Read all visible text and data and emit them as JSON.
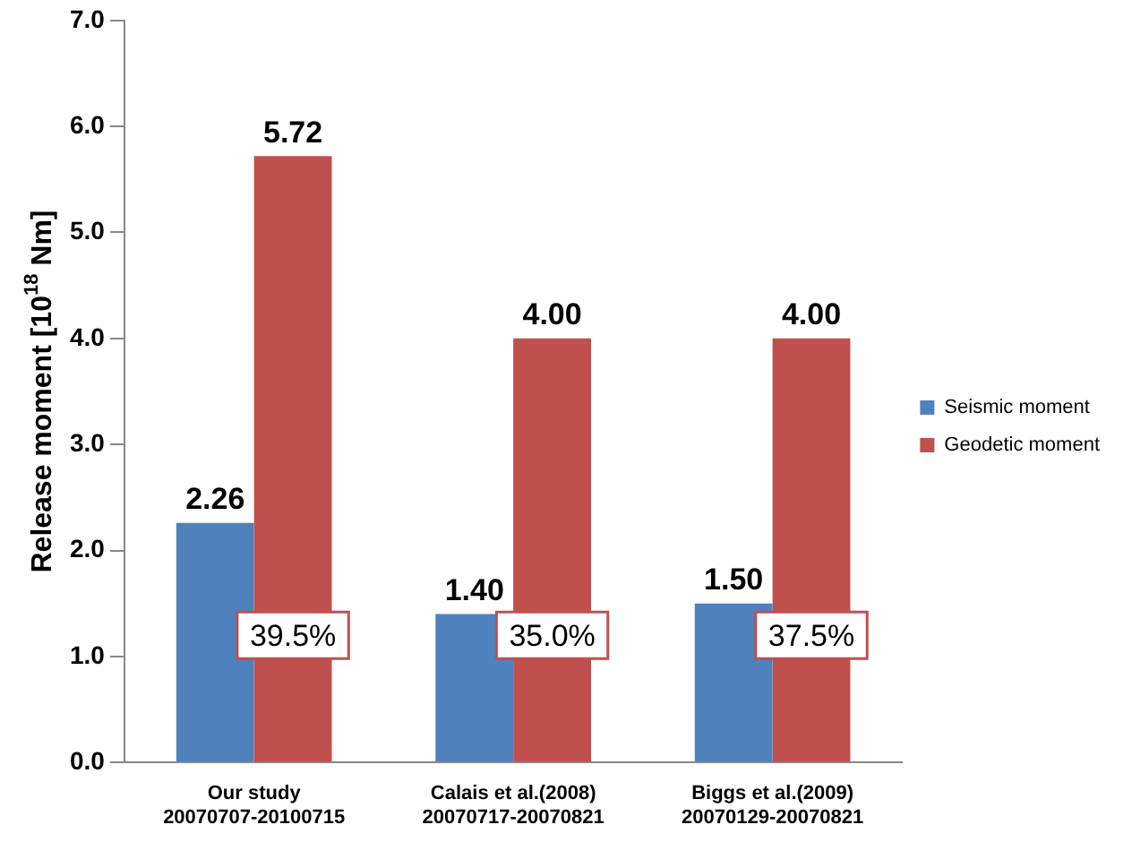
{
  "chart_data": {
    "type": "bar",
    "ylabel": "Release moment [10$^{18}$ Nm]",
    "categories": [
      "Our study\n20070707-20100715",
      "Calais et al.(2008)\n20070717-20070821",
      "Biggs et al.(2009)\n20070129-20070821"
    ],
    "series": [
      {
        "name": "Seismic moment",
        "color": "#4f81bd",
        "values": [
          2.26,
          1.4,
          1.5
        ],
        "value_labels": [
          "2.26",
          "1.40",
          "1.50"
        ]
      },
      {
        "name": "Geodetic moment",
        "color": "#c0504d",
        "values": [
          5.72,
          4.0,
          4.0
        ],
        "value_labels": [
          "5.72",
          "4.00",
          "4.00"
        ]
      }
    ],
    "ylim": [
      0,
      7
    ],
    "yticks": [
      {
        "value": 0,
        "label": "0.0"
      },
      {
        "value": 1,
        "label": "1.0"
      },
      {
        "value": 2,
        "label": "2.0"
      },
      {
        "value": 3,
        "label": "3.0"
      },
      {
        "value": 4,
        "label": "4.0"
      },
      {
        "value": 5,
        "label": "5.0"
      },
      {
        "value": 6,
        "label": "6.0"
      },
      {
        "value": 7,
        "label": "7.0"
      }
    ],
    "grid": false,
    "legend": "right",
    "annotations": [
      {
        "text": "39.5%",
        "x": "Our study\n20070707-20100715",
        "y": 1.2
      },
      {
        "text": "35.0%",
        "x": "Calais et al.(2008)\n20070717-20070821",
        "y": 1.2
      },
      {
        "text": "37.5%",
        "x": "Biggs et al.(2009)\n20070129-20070821",
        "y": 1.2
      }
    ]
  }
}
